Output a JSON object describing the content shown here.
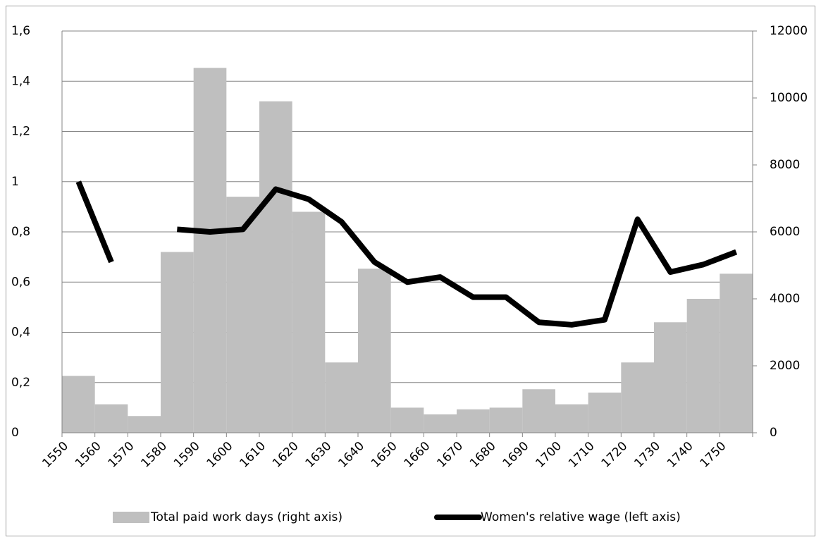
{
  "chart_data": {
    "type": "combo",
    "categories": [
      "1550",
      "1560",
      "1570",
      "1580",
      "1590",
      "1600",
      "1610",
      "1620",
      "1630",
      "1640",
      "1650",
      "1660",
      "1670",
      "1680",
      "1690",
      "1700",
      "1710",
      "1720",
      "1730",
      "1740",
      "1750"
    ],
    "series": [
      {
        "name": "Total paid work days (right axis)",
        "type": "bar",
        "axis": "y2",
        "color": "#bfbfbf",
        "values": [
          1700,
          850,
          500,
          5400,
          10900,
          7050,
          9900,
          6600,
          2100,
          4900,
          750,
          550,
          700,
          750,
          1300,
          850,
          1200,
          2100,
          3300,
          4000,
          4750
        ]
      },
      {
        "name": "Women's relative wage (left axis)",
        "type": "line",
        "axis": "y",
        "color": "#000000",
        "values": [
          1.0,
          0.68,
          null,
          0.81,
          0.8,
          0.81,
          0.97,
          0.93,
          0.84,
          0.68,
          0.6,
          0.62,
          0.54,
          0.54,
          0.44,
          0.43,
          0.45,
          0.85,
          0.64,
          0.67,
          0.72
        ]
      }
    ],
    "ylim": [
      0,
      1.6
    ],
    "yticks": [
      0,
      {
        "value": 0.2,
        "label": "0,2"
      },
      {
        "value": 0.4,
        "label": "0,4"
      },
      {
        "value": 0.6,
        "label": "0,6"
      },
      {
        "value": 0.8,
        "label": "0,8"
      },
      1,
      {
        "value": 1.2,
        "label": "1,2"
      },
      {
        "value": 1.4,
        "label": "1,4"
      },
      {
        "value": 1.6,
        "label": "1,6"
      }
    ],
    "y2lim": [
      0,
      12000
    ],
    "y2ticks": [
      0,
      2000,
      4000,
      6000,
      8000,
      10000,
      12000
    ],
    "grid": true,
    "legend": "bottom"
  }
}
